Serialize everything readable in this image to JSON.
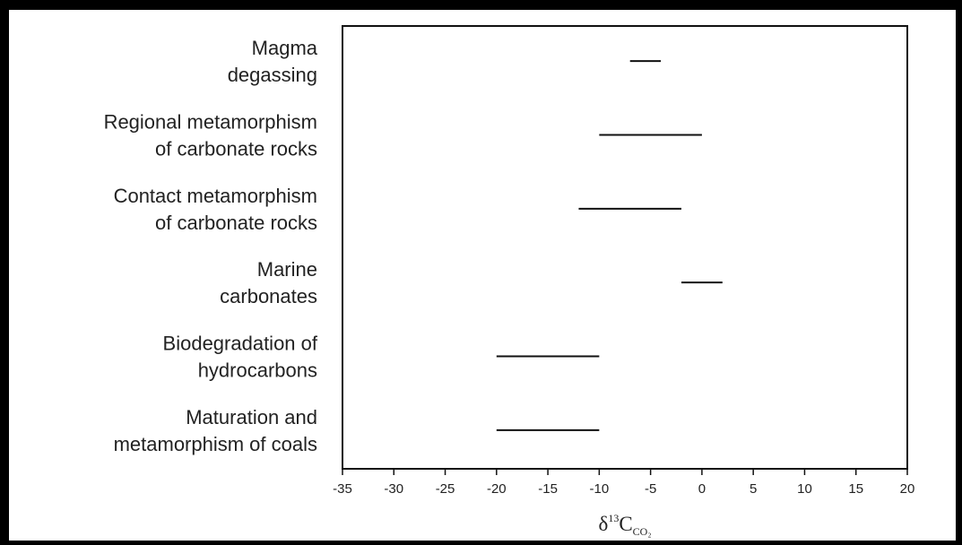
{
  "chart_data": {
    "type": "range",
    "xlabel": {
      "symbol": "δ",
      "superscript": "13",
      "base": "C",
      "subscript": "CO₂"
    },
    "xlim": [
      -35,
      20
    ],
    "xticks": [
      -35,
      -30,
      -25,
      -20,
      -15,
      -10,
      -5,
      0,
      5,
      10,
      15,
      20
    ],
    "grid": false,
    "legend": "none",
    "line_color": "#111111",
    "categories": [
      {
        "line1": "Magma",
        "line2": "degassing",
        "min": -7,
        "max": -4
      },
      {
        "line1": "Regional metamorphism",
        "line2": "of carbonate rocks",
        "min": -10,
        "max": 0
      },
      {
        "line1": "Contact metamorphism",
        "line2": "of carbonate rocks",
        "min": -12,
        "max": -2
      },
      {
        "line1": "Marine",
        "line2": "carbonates",
        "min": -2,
        "max": 2
      },
      {
        "line1": "Biodegradation of",
        "line2": "hydrocarbons",
        "min": -20,
        "max": -10
      },
      {
        "line1": "Maturation and",
        "line2": "metamorphism of coals",
        "min": -20,
        "max": -10
      }
    ]
  }
}
